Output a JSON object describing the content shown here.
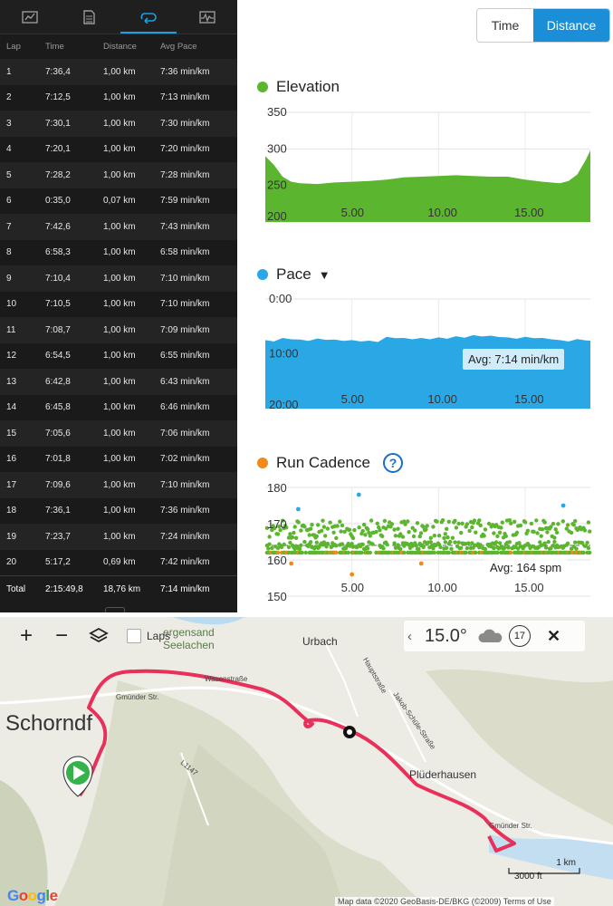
{
  "laps": {
    "tabs": [
      {
        "icon": "summary-chart-icon"
      },
      {
        "icon": "document-icon"
      },
      {
        "icon": "laps-loop-icon",
        "active": true
      },
      {
        "icon": "activity-graph-icon"
      }
    ],
    "headers": {
      "lap": "Lap",
      "time": "Time",
      "distance": "Distance",
      "pace": "Avg Pace"
    },
    "rows": [
      {
        "lap": "1",
        "time": "7:36,4",
        "distance": "1,00 km",
        "pace": "7:36 min/km"
      },
      {
        "lap": "2",
        "time": "7:12,5",
        "distance": "1,00 km",
        "pace": "7:13 min/km"
      },
      {
        "lap": "3",
        "time": "7:30,1",
        "distance": "1,00 km",
        "pace": "7:30 min/km"
      },
      {
        "lap": "4",
        "time": "7:20,1",
        "distance": "1,00 km",
        "pace": "7:20 min/km"
      },
      {
        "lap": "5",
        "time": "7:28,2",
        "distance": "1,00 km",
        "pace": "7:28 min/km"
      },
      {
        "lap": "6",
        "time": "0:35,0",
        "distance": "0,07 km",
        "pace": "7:59 min/km"
      },
      {
        "lap": "7",
        "time": "7:42,6",
        "distance": "1,00 km",
        "pace": "7:43 min/km"
      },
      {
        "lap": "8",
        "time": "6:58,3",
        "distance": "1,00 km",
        "pace": "6:58 min/km"
      },
      {
        "lap": "9",
        "time": "7:10,4",
        "distance": "1,00 km",
        "pace": "7:10 min/km"
      },
      {
        "lap": "10",
        "time": "7:10,5",
        "distance": "1,00 km",
        "pace": "7:10 min/km"
      },
      {
        "lap": "11",
        "time": "7:08,7",
        "distance": "1,00 km",
        "pace": "7:09 min/km"
      },
      {
        "lap": "12",
        "time": "6:54,5",
        "distance": "1,00 km",
        "pace": "6:55 min/km"
      },
      {
        "lap": "13",
        "time": "6:42,8",
        "distance": "1,00 km",
        "pace": "6:43 min/km"
      },
      {
        "lap": "14",
        "time": "6:45,8",
        "distance": "1,00 km",
        "pace": "6:46 min/km"
      },
      {
        "lap": "15",
        "time": "7:05,6",
        "distance": "1,00 km",
        "pace": "7:06 min/km"
      },
      {
        "lap": "16",
        "time": "7:01,8",
        "distance": "1,00 km",
        "pace": "7:02 min/km"
      },
      {
        "lap": "17",
        "time": "7:09,6",
        "distance": "1,00 km",
        "pace": "7:10 min/km"
      },
      {
        "lap": "18",
        "time": "7:36,1",
        "distance": "1,00 km",
        "pace": "7:36 min/km"
      },
      {
        "lap": "19",
        "time": "7:23,7",
        "distance": "1,00 km",
        "pace": "7:24 min/km"
      },
      {
        "lap": "20",
        "time": "5:17,2",
        "distance": "0,69 km",
        "pace": "7:42 min/km"
      }
    ],
    "total": {
      "lap": "Total",
      "time": "2:15:49,8",
      "distance": "18,76 km",
      "pace": "7:14 min/km"
    }
  },
  "toggle": {
    "time": "Time",
    "distance": "Distance",
    "selected": "Distance",
    "accent": "#1a8fd8"
  },
  "elevation": {
    "title": "Elevation",
    "color": "#5cb52f"
  },
  "pace": {
    "title": "Pace",
    "caret": "▼",
    "avg": "Avg: 7:14 min/km",
    "color": "#2aa8e6"
  },
  "cadence": {
    "title": "Run Cadence",
    "help": "?",
    "avg": "Avg: 164 spm",
    "color": "#f08a1c"
  },
  "chart_data": [
    {
      "type": "area",
      "title": "Elevation",
      "x_ticks": [
        5,
        10,
        15
      ],
      "x_tick_labels": [
        "5.00",
        "10.00",
        "15.00"
      ],
      "y_ticks": [
        200,
        250,
        300,
        350
      ],
      "y_tick_labels": [
        "200",
        "250",
        "300",
        "350"
      ],
      "ylim": [
        200,
        350
      ],
      "xlim": [
        0,
        18.76
      ],
      "x": [
        0,
        0.5,
        1,
        1.5,
        2,
        3,
        4,
        5,
        6,
        7,
        8,
        9,
        10,
        11,
        12,
        13,
        14,
        15,
        16,
        17,
        17.5,
        18,
        18.5,
        18.76
      ],
      "y": [
        290,
        278,
        262,
        255,
        253,
        252,
        254,
        255,
        256,
        258,
        261,
        262,
        263,
        264,
        263,
        262,
        262,
        258,
        255,
        253,
        256,
        265,
        285,
        298
      ],
      "grid": true
    },
    {
      "type": "area",
      "title": "Pace",
      "x_ticks": [
        5,
        10,
        15
      ],
      "x_tick_labels": [
        "5.00",
        "10.00",
        "15.00"
      ],
      "y_ticks": [
        0,
        10,
        20
      ],
      "y_tick_labels": [
        "0:00",
        "10:00",
        "20:00"
      ],
      "ylim": [
        20,
        0
      ],
      "xlim": [
        0,
        18.76
      ],
      "x": [
        0,
        1,
        2,
        3,
        4,
        5,
        6,
        7,
        8,
        9,
        10,
        11,
        12,
        13,
        14,
        15,
        16,
        17,
        18,
        18.76
      ],
      "y": [
        7.6,
        7.2,
        7.5,
        7.3,
        7.5,
        7.6,
        7.7,
        7.0,
        7.2,
        7.2,
        7.1,
        6.9,
        6.7,
        6.8,
        7.1,
        7.0,
        7.2,
        7.6,
        7.4,
        7.7
      ],
      "avg_label": "Avg: 7:14 min/km",
      "grid": true
    },
    {
      "type": "scatter",
      "title": "Run Cadence",
      "x_ticks": [
        5,
        10,
        15
      ],
      "x_tick_labels": [
        "5.00",
        "10.00",
        "15.00"
      ],
      "y_ticks": [
        150,
        160,
        170,
        180
      ],
      "y_tick_labels": [
        "150",
        "160",
        "170",
        "180"
      ],
      "ylim": [
        150,
        180
      ],
      "xlim": [
        0,
        18.76
      ],
      "typical_range": [
        161,
        171
      ],
      "avg": 164,
      "avg_label": "Avg: 164 spm",
      "grid": true
    }
  ],
  "map": {
    "zoom_in": "+",
    "zoom_out": "−",
    "laps_label": "Laps",
    "temperature": "15.0°",
    "wind": "17",
    "close": "✕",
    "places": {
      "schorndorf": "Schorndf",
      "urbach": "Urbach",
      "pluederhausen": "Plüderhausen",
      "lake": "ergensand\nSeelachen",
      "gmuender1": "Gmünder Str.",
      "gmuender2": "Gmünder Str.",
      "wasen": "Wasenstraße",
      "haupt": "Hauptstraße",
      "jakob": "Jakob-Schüle-Straße",
      "l1147": "L1147"
    },
    "scale_km": "1 km",
    "scale_ft": "3000 ft",
    "attribution": "Map data ©2020 GeoBasis-DE/BKG (©2009)   Terms of Use",
    "google": "Google",
    "route_color": "#e8305a"
  }
}
